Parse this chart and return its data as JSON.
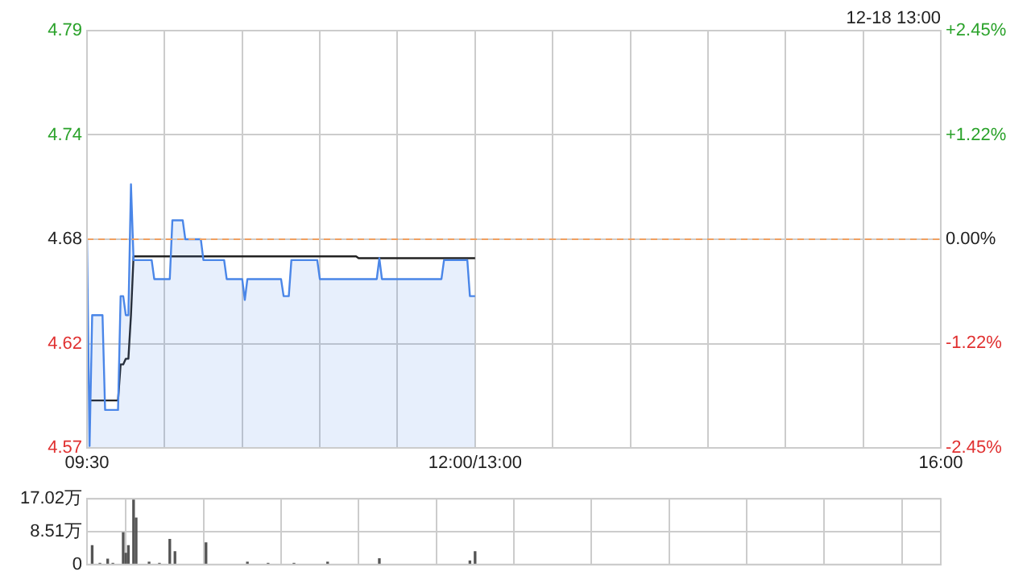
{
  "chart_data": [
    {
      "type": "line",
      "annotations": [
        "12-18 13:00"
      ],
      "grid": true,
      "legend": false,
      "marker": "none",
      "categories": [
        "09:30",
        null,
        null,
        null,
        null,
        null,
        null,
        null,
        null,
        null,
        null,
        null,
        null,
        null,
        null,
        null,
        null,
        null,
        null,
        null,
        null,
        null,
        null,
        null,
        null,
        null,
        null,
        null,
        null,
        null,
        null,
        null,
        null,
        null,
        null,
        null,
        null,
        null,
        null,
        null,
        null,
        null,
        null,
        null,
        null,
        null,
        null,
        null,
        null,
        null,
        null,
        null,
        null,
        null,
        null,
        null,
        null,
        null,
        null,
        null,
        null,
        null,
        null,
        null,
        null,
        null,
        null,
        null,
        null,
        null,
        null,
        null,
        null,
        null,
        null,
        null,
        null,
        null,
        null,
        null,
        null,
        null,
        null,
        null,
        null,
        null,
        null,
        null,
        null,
        null,
        null,
        null,
        null,
        null,
        null,
        null,
        null,
        null,
        null,
        null,
        null,
        null,
        null,
        null,
        null,
        null,
        null,
        null,
        null,
        null,
        null,
        null,
        null,
        null,
        null,
        null,
        null,
        null,
        null,
        null,
        null,
        null,
        null,
        null,
        null,
        null,
        null,
        null,
        null,
        null,
        null,
        null,
        null,
        null,
        null,
        null,
        null,
        null,
        null,
        null,
        null,
        null,
        null,
        null,
        null,
        null,
        null,
        null,
        null,
        null,
        "12:00/13:00",
        null,
        null,
        null,
        null,
        null,
        null,
        null,
        null,
        null,
        null,
        null,
        null,
        null,
        null,
        null,
        null,
        null,
        null,
        null,
        null,
        null,
        null,
        null,
        null,
        null,
        null,
        null,
        null,
        null,
        null,
        null,
        null,
        null,
        null,
        null,
        null,
        null,
        null,
        null,
        null,
        null,
        null,
        null,
        null,
        null,
        null,
        null,
        null,
        null,
        null,
        null,
        null,
        null,
        null,
        null,
        null,
        null,
        null,
        null,
        null,
        null,
        null,
        null,
        null,
        null,
        null,
        null,
        null,
        null,
        null,
        null,
        null,
        null,
        null,
        null,
        null,
        null,
        null,
        null,
        null,
        null,
        null,
        null,
        null,
        null,
        null,
        null,
        null,
        null,
        null,
        null,
        null,
        null,
        null,
        null,
        null,
        null,
        null,
        null,
        null,
        null,
        null,
        null,
        null,
        null,
        null,
        null,
        null,
        null,
        null,
        null,
        null,
        null,
        null,
        null,
        null,
        null,
        null,
        null,
        null,
        null,
        null,
        null,
        null,
        null,
        null,
        null,
        null,
        null,
        null,
        null,
        null,
        null,
        null,
        null,
        null,
        null,
        null,
        null,
        null,
        null,
        null,
        null,
        null,
        null,
        null,
        null,
        null,
        null,
        null,
        null,
        null,
        null,
        null,
        null,
        null,
        null,
        null,
        null,
        null,
        null,
        null,
        null,
        null,
        null,
        null,
        null,
        null,
        null,
        null,
        null,
        null,
        null,
        null,
        null,
        null,
        null,
        null,
        null,
        "16:00"
      ],
      "ylim": [
        4.57,
        4.79
      ],
      "yticks": [
        4.57,
        {
          "value": 4.625,
          "label": "4.62"
        },
        4.68,
        {
          "value": 4.735,
          "label": "4.74"
        },
        4.79
      ],
      "y2lim": [
        -2.45,
        2.45
      ],
      "y2ticks": [
        {
          "value": -2.45,
          "label": "-2.45%"
        },
        {
          "value": -1.22,
          "label": "-1.22%"
        },
        {
          "value": 0,
          "label": "0.00%"
        },
        {
          "value": 1.22,
          "label": "+1.22%"
        },
        {
          "value": 2.45,
          "label": "+2.45%"
        }
      ],
      "ref_lines": [
        {
          "axis": "y",
          "value": 4.68,
          "color": "#f0a060",
          "line_style": "dashed"
        }
      ],
      "series": [
        {
          "type": "area",
          "color": "#4a86e8",
          "values": [
            4.68,
            4.571,
            4.64,
            4.64,
            4.64,
            4.64,
            4.64,
            4.59,
            4.59,
            4.59,
            4.59,
            4.59,
            4.59,
            4.65,
            4.65,
            4.64,
            4.64,
            4.709,
            4.669,
            4.669,
            4.669,
            4.669,
            4.669,
            4.669,
            4.669,
            4.669,
            4.659,
            4.659,
            4.659,
            4.659,
            4.659,
            4.659,
            4.659,
            4.69,
            4.69,
            4.69,
            4.69,
            4.69,
            4.68,
            4.68,
            4.68,
            4.68,
            4.68,
            4.68,
            4.68,
            4.669,
            4.669,
            4.669,
            4.669,
            4.669,
            4.669,
            4.669,
            4.669,
            4.669,
            4.659,
            4.659,
            4.659,
            4.659,
            4.659,
            4.659,
            4.659,
            4.648,
            4.659,
            4.659,
            4.659,
            4.659,
            4.659,
            4.659,
            4.659,
            4.659,
            4.659,
            4.659,
            4.659,
            4.659,
            4.659,
            4.659,
            4.65,
            4.65,
            4.65,
            4.669,
            4.669,
            4.669,
            4.669,
            4.669,
            4.669,
            4.669,
            4.669,
            4.669,
            4.669,
            4.669,
            4.659,
            4.659,
            4.659,
            4.659,
            4.659,
            4.659,
            4.659,
            4.659,
            4.659,
            4.659,
            4.659,
            4.659,
            4.659,
            4.659,
            4.659,
            4.659,
            4.659,
            4.659,
            4.659,
            4.659,
            4.659,
            4.659,
            4.659,
            4.67,
            4.659,
            4.659,
            4.659,
            4.659,
            4.659,
            4.659,
            4.659,
            4.659,
            4.659,
            4.659,
            4.659,
            4.659,
            4.659,
            4.659,
            4.659,
            4.659,
            4.659,
            4.659,
            4.659,
            4.659,
            4.659,
            4.659,
            4.659,
            4.659,
            4.669,
            4.669,
            4.669,
            4.669,
            4.669,
            4.669,
            4.669,
            4.669,
            4.669,
            4.669,
            4.65,
            4.65,
            4.65,
            null,
            null,
            null,
            null,
            null,
            null,
            null,
            null,
            null,
            null,
            null,
            null,
            null,
            null,
            null,
            null,
            null,
            null,
            null,
            null,
            null,
            null,
            null,
            null,
            null,
            null,
            null,
            null,
            null,
            null,
            null,
            null,
            null,
            null,
            null,
            null,
            null,
            null,
            null,
            null,
            null,
            null,
            null,
            null,
            null,
            null,
            null,
            null,
            null,
            null,
            null,
            null,
            null,
            null,
            null,
            null,
            null,
            null,
            null,
            null,
            null,
            null,
            null,
            null,
            null,
            null,
            null,
            null,
            null,
            null,
            null,
            null,
            null,
            null,
            null,
            null,
            null,
            null,
            null,
            null,
            null,
            null,
            null,
            null,
            null,
            null,
            null,
            null,
            null,
            null,
            null,
            null,
            null,
            null,
            null,
            null,
            null,
            null,
            null,
            null,
            null,
            null,
            null,
            null,
            null,
            null,
            null,
            null,
            null,
            null,
            null,
            null,
            null,
            null,
            null,
            null,
            null,
            null,
            null,
            null,
            null,
            null,
            null,
            null,
            null,
            null,
            null,
            null,
            null,
            null,
            null,
            null,
            null,
            null,
            null,
            null,
            null,
            null,
            null,
            null,
            null,
            null,
            null,
            null,
            null,
            null,
            null,
            null,
            null,
            null,
            null,
            null,
            null,
            null,
            null,
            null,
            null,
            null,
            null,
            null,
            null,
            null,
            null,
            null,
            null,
            null,
            null,
            null,
            null,
            null,
            null,
            null,
            null,
            null,
            null,
            null,
            null,
            null,
            null,
            null
          ]
        },
        {
          "type": "line",
          "color": "#222222",
          "values": [
            null,
            4.595,
            4.595,
            4.595,
            4.595,
            4.595,
            4.595,
            4.595,
            4.595,
            4.595,
            4.595,
            4.595,
            4.595,
            4.614,
            4.614,
            4.617,
            4.617,
            4.64,
            4.671,
            4.671,
            4.671,
            4.671,
            4.671,
            4.671,
            4.671,
            4.671,
            4.671,
            4.671,
            4.671,
            4.671,
            4.671,
            4.671,
            4.671,
            4.671,
            4.671,
            4.671,
            4.671,
            4.671,
            4.671,
            4.671,
            4.671,
            4.671,
            4.671,
            4.671,
            4.671,
            4.671,
            4.671,
            4.671,
            4.671,
            4.671,
            4.671,
            4.671,
            4.671,
            4.671,
            4.671,
            4.671,
            4.671,
            4.671,
            4.671,
            4.671,
            4.671,
            4.671,
            4.671,
            4.671,
            4.671,
            4.671,
            4.671,
            4.671,
            4.671,
            4.671,
            4.671,
            4.671,
            4.671,
            4.671,
            4.671,
            4.671,
            4.671,
            4.671,
            4.671,
            4.671,
            4.671,
            4.671,
            4.671,
            4.671,
            4.671,
            4.671,
            4.671,
            4.671,
            4.671,
            4.671,
            4.671,
            4.671,
            4.671,
            4.671,
            4.671,
            4.671,
            4.671,
            4.671,
            4.671,
            4.671,
            4.671,
            4.671,
            4.671,
            4.671,
            4.671,
            4.67,
            4.67,
            4.67,
            4.67,
            4.67,
            4.67,
            4.67,
            4.67,
            4.67,
            4.67,
            4.67,
            4.67,
            4.67,
            4.67,
            4.67,
            4.67,
            4.67,
            4.67,
            4.67,
            4.67,
            4.67,
            4.67,
            4.67,
            4.67,
            4.67,
            4.67,
            4.67,
            4.67,
            4.67,
            4.67,
            4.67,
            4.67,
            4.67,
            4.67,
            4.67,
            4.67,
            4.67,
            4.67,
            4.67,
            4.67,
            4.67,
            4.67,
            4.67,
            4.67,
            4.67,
            4.67,
            null,
            null,
            null,
            null,
            null,
            null,
            null,
            null,
            null,
            null,
            null,
            null,
            null,
            null,
            null,
            null,
            null,
            null,
            null,
            null,
            null,
            null,
            null,
            null,
            null,
            null,
            null,
            null,
            null,
            null,
            null,
            null,
            null,
            null,
            null,
            null,
            null,
            null,
            null,
            null,
            null,
            null,
            null,
            null,
            null,
            null,
            null,
            null,
            null,
            null,
            null,
            null,
            null,
            null,
            null,
            null,
            null,
            null,
            null,
            null,
            null,
            null,
            null,
            null,
            null,
            null,
            null,
            null,
            null,
            null,
            null,
            null,
            null,
            null,
            null,
            null,
            null,
            null,
            null,
            null,
            null,
            null,
            null,
            null,
            null,
            null,
            null,
            null,
            null,
            null,
            null,
            null,
            null,
            null,
            null,
            null,
            null,
            null,
            null,
            null,
            null,
            null,
            null,
            null,
            null,
            null,
            null,
            null,
            null,
            null,
            null,
            null,
            null,
            null,
            null,
            null,
            null,
            null,
            null,
            null,
            null,
            null,
            null,
            null,
            null,
            null,
            null,
            null,
            null,
            null,
            null,
            null,
            null,
            null,
            null,
            null,
            null,
            null,
            null,
            null,
            null,
            null,
            null,
            null,
            null,
            null,
            null,
            null,
            null,
            null,
            null,
            null,
            null,
            null,
            null,
            null,
            null,
            null,
            null,
            null,
            null,
            null,
            null,
            null,
            null,
            null,
            null,
            null,
            null,
            null,
            null,
            null,
            null,
            null,
            null,
            null,
            null,
            null,
            null,
            null
          ]
        }
      ]
    },
    {
      "type": "bar",
      "color": "#555555",
      "grid": true,
      "legend": false,
      "tick_labels": "y",
      "categories": [
        null,
        null,
        null,
        null,
        null,
        null,
        null,
        null,
        null,
        null,
        null,
        null,
        null,
        null,
        null,
        null,
        null,
        null,
        null,
        null,
        null,
        null,
        null,
        null,
        null,
        null,
        null,
        null,
        null,
        null,
        null,
        null,
        null,
        null,
        null,
        null,
        null,
        null,
        null,
        null,
        null,
        null,
        null,
        null,
        null,
        null,
        null,
        null,
        null,
        null,
        null,
        null,
        null,
        null,
        null,
        null,
        null,
        null,
        null,
        null,
        null,
        null,
        null,
        null,
        null,
        null,
        null,
        null,
        null,
        null,
        null,
        null,
        null,
        null,
        null,
        null,
        null,
        null,
        null,
        null,
        null,
        null,
        null,
        null,
        null,
        null,
        null,
        null,
        null,
        null,
        null,
        null,
        null,
        null,
        null,
        null,
        null,
        null,
        null,
        null,
        null,
        null,
        null,
        null,
        null,
        null,
        null,
        null,
        null,
        null,
        null,
        null,
        null,
        null,
        null,
        null,
        null,
        null,
        null,
        null,
        null,
        null,
        null,
        null,
        null,
        null,
        null,
        null,
        null,
        null,
        null,
        null,
        null,
        null,
        null,
        null,
        null,
        null,
        null,
        null,
        null,
        null,
        null,
        null,
        null,
        null,
        null,
        null,
        null,
        null,
        null,
        null,
        null,
        null,
        null,
        null,
        null,
        null,
        null,
        null,
        null,
        null,
        null,
        null,
        null,
        null,
        null,
        null,
        null,
        null,
        null,
        null,
        null,
        null,
        null,
        null,
        null,
        null,
        null,
        null,
        null,
        null,
        null,
        null,
        null,
        null,
        null,
        null,
        null,
        null,
        null,
        null,
        null,
        null,
        null,
        null,
        null,
        null,
        null,
        null,
        null,
        null,
        null,
        null,
        null,
        null,
        null,
        null,
        null,
        null,
        null,
        null,
        null,
        null,
        null,
        null,
        null,
        null,
        null,
        null,
        null,
        null,
        null,
        null,
        null,
        null,
        null,
        null,
        null,
        null,
        null,
        null,
        null,
        null,
        null,
        null,
        null,
        null,
        null,
        null,
        null,
        null,
        null,
        null,
        null,
        null,
        null,
        null,
        null,
        null,
        null,
        null,
        null,
        null,
        null,
        null,
        null,
        null,
        null,
        null,
        null,
        null,
        null,
        null,
        null,
        null,
        null,
        null,
        null,
        null,
        null,
        null,
        null,
        null,
        null,
        null,
        null,
        null,
        null,
        null,
        null,
        null,
        null,
        null,
        null,
        null,
        null,
        null,
        null,
        null,
        null,
        null,
        null,
        null,
        null,
        null,
        null,
        null,
        null,
        null,
        null,
        null,
        null,
        null,
        null,
        null,
        null,
        null,
        null,
        null,
        null,
        null,
        null,
        null,
        null,
        null,
        null,
        null,
        null,
        null,
        null,
        null,
        null,
        null,
        null,
        null,
        null,
        null,
        null,
        null,
        null
      ],
      "ylim": [
        0,
        17.02
      ],
      "yticks": [
        0,
        {
          "value": 8.51,
          "label": "8.51万"
        },
        {
          "value": 17.02,
          "label": "17.02万"
        }
      ],
      "values": [
        null,
        null,
        4.9,
        null,
        null,
        0.3,
        null,
        null,
        1.4,
        null,
        0.3,
        null,
        null,
        null,
        8.2,
        2.9,
        4.9,
        null,
        17.0,
        12.0,
        null,
        null,
        null,
        null,
        0.6,
        null,
        null,
        null,
        0.3,
        null,
        null,
        null,
        6.5,
        null,
        3.3,
        null,
        null,
        null,
        null,
        null,
        null,
        null,
        null,
        null,
        null,
        null,
        5.6,
        null,
        null,
        null,
        null,
        null,
        null,
        null,
        null,
        null,
        null,
        null,
        null,
        null,
        null,
        null,
        0.6,
        null,
        null,
        null,
        null,
        null,
        null,
        null,
        0.3,
        null,
        null,
        null,
        null,
        null,
        null,
        null,
        null,
        null,
        0.3,
        null,
        null,
        null,
        null,
        null,
        null,
        null,
        null,
        null,
        null,
        null,
        null,
        0.6,
        null,
        null,
        null,
        null,
        null,
        null,
        null,
        null,
        null,
        null,
        null,
        null,
        null,
        null,
        null,
        null,
        null,
        null,
        null,
        1.5,
        null,
        null,
        null,
        null,
        null,
        null,
        null,
        null,
        null,
        null,
        null,
        null,
        null,
        null,
        null,
        null,
        null,
        null,
        null,
        null,
        null,
        null,
        null,
        null,
        null,
        null,
        null,
        null,
        null,
        null,
        null,
        null,
        null,
        null,
        0.9,
        null,
        3.3,
        null,
        null,
        null,
        null,
        null,
        null,
        null,
        null,
        null,
        null,
        null,
        null,
        null,
        null,
        null,
        null,
        null,
        null,
        null,
        null,
        null,
        null,
        null,
        null,
        null,
        null,
        null,
        null,
        null,
        null,
        null,
        null,
        null,
        null,
        null,
        null,
        null,
        null,
        null,
        null,
        null,
        null,
        null,
        null,
        null,
        null,
        null,
        null,
        null,
        null,
        null,
        null,
        null,
        null,
        null,
        null,
        null,
        null,
        null,
        null,
        null,
        null,
        null,
        null,
        null,
        null,
        null,
        null,
        null,
        null,
        null,
        null,
        null,
        null,
        null,
        null,
        null,
        null,
        null,
        null,
        null,
        null,
        null,
        null,
        null,
        null,
        null,
        null,
        null,
        null,
        null,
        null,
        null,
        null,
        null,
        null,
        null,
        null,
        null,
        null,
        null,
        null,
        null,
        null,
        null,
        null,
        null,
        null,
        null,
        null,
        null,
        null,
        null,
        null,
        null,
        null,
        null,
        null,
        null,
        null,
        null,
        null,
        null,
        null,
        null,
        null,
        null,
        null,
        null,
        null,
        null,
        null,
        null,
        null,
        null,
        null,
        null,
        null,
        null,
        null,
        null,
        null,
        null,
        null,
        null,
        null,
        null,
        null,
        null,
        null,
        null,
        null,
        null,
        null,
        null,
        null,
        null,
        null,
        null,
        null,
        null,
        null,
        null,
        null,
        null,
        null,
        null,
        null,
        null,
        null,
        null,
        null,
        null,
        null,
        null,
        null,
        null,
        null,
        null,
        null
      ]
    }
  ]
}
